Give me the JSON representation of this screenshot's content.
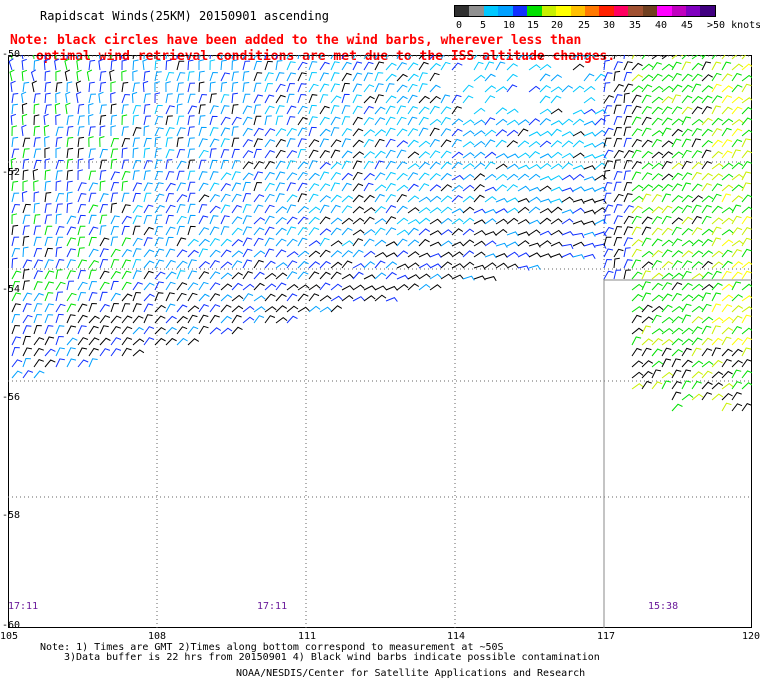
{
  "header": {
    "title": "Rapidscat Winds(25KM) 20150901 ascending",
    "note_line1": "Note: black circles have been added to the wind barbs, wherever less than",
    "note_line2": "optimal wind retrieval conditions are met due to the ISS altitude changes."
  },
  "colorbar": {
    "labels": [
      "0",
      "5",
      "10",
      "15",
      "20",
      "25",
      "30",
      "35",
      "40",
      "45",
      ">50 knots"
    ],
    "colors": [
      "#303030",
      "#909090",
      "#00c8ff",
      "#00a0ff",
      "#1030ff",
      "#00e000",
      "#c8f000",
      "#ffff00",
      "#ffc000",
      "#ff7800",
      "#ff2000",
      "#ff0060",
      "#a05030",
      "#704020",
      "#ff00ff",
      "#c000c0",
      "#8000c0",
      "#400080"
    ]
  },
  "map": {
    "lat_labels": [
      "-50",
      "-52",
      "-54",
      "-56",
      "-58",
      "-60"
    ],
    "lon_labels": [
      "105",
      "108",
      "111",
      "114",
      "117",
      "120"
    ],
    "time_labels": [
      "17:11",
      "17:11",
      "15:38"
    ]
  },
  "chart_data": {
    "type": "wind barb map",
    "x_range": [
      105,
      120
    ],
    "y_range": [
      -60,
      -50
    ],
    "x_ticks": [
      105,
      108,
      111,
      114,
      117,
      120
    ],
    "y_ticks": [
      -50,
      -52,
      -54,
      -56,
      -58,
      -60
    ],
    "grid": true,
    "swaths": [
      {
        "time": "17:11",
        "description": "main ascending swath covering 105-117E, approximately -50 to -56"
      },
      {
        "time": "15:38",
        "description": "eastern swath covering 117.5-120E, approximately -50 to -57"
      }
    ]
  },
  "footer": {
    "line1": "Note: 1) Times are GMT 2)Times along bottom correspond to measurement at ~50S",
    "line2": "3)Data buffer is 22 hrs from 20150901 4) Black wind barbs indicate possible contamination",
    "line3": "NOAA/NESDIS/Center for Satellite Applications and Research"
  }
}
